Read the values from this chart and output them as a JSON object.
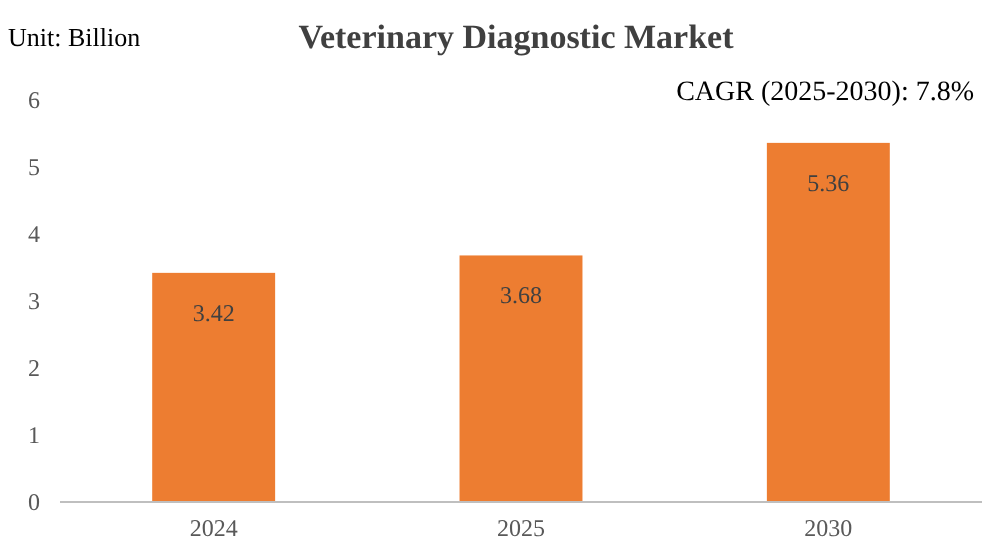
{
  "chart_data": {
    "type": "bar",
    "title": "Veterinary Diagnostic Market",
    "ylabel": "Unit: Billion",
    "categories": [
      "2024",
      "2025",
      "2030"
    ],
    "values": [
      3.42,
      3.68,
      5.36
    ],
    "color": "#ed7d31",
    "data_labels": true,
    "ylim": [
      0,
      6
    ],
    "yticks": [
      0,
      1,
      2,
      3,
      4,
      5,
      6
    ],
    "grid": false,
    "annotations": [
      "CAGR (2025-2030): 7.8%"
    ]
  }
}
